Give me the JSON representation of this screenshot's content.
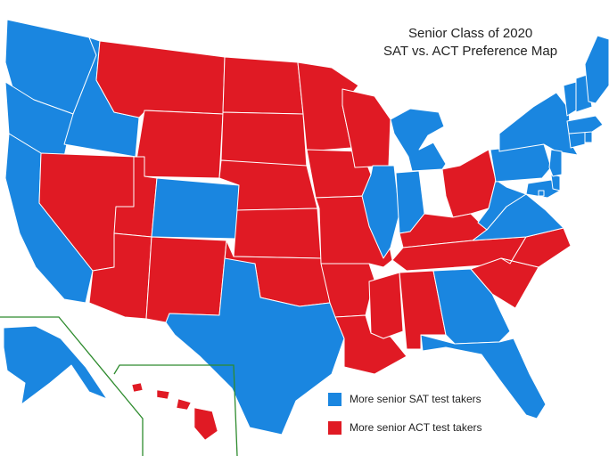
{
  "title": {
    "line1": "Senior Class of 2020",
    "line2": "SAT vs. ACT Preference Map"
  },
  "colors": {
    "sat": "#1a86e0",
    "act": "#e01a24",
    "state_border": "#ffffff",
    "inset_border": "#2e8b2e"
  },
  "legend": {
    "items": [
      {
        "key": "sat",
        "label": "More senior SAT test takers"
      },
      {
        "key": "act",
        "label": "More senior ACT test takers"
      }
    ]
  },
  "states": {
    "sat": [
      "WA",
      "OR",
      "CA",
      "ID",
      "CO",
      "TX",
      "IL",
      "IN",
      "MI",
      "GA",
      "FL",
      "WV",
      "VA",
      "MD",
      "DE",
      "NJ",
      "PA",
      "NY",
      "CT",
      "RI",
      "MA",
      "VT",
      "NH",
      "ME",
      "DC",
      "AK"
    ],
    "act": [
      "NV",
      "UT",
      "AZ",
      "MT",
      "WY",
      "NM",
      "ND",
      "SD",
      "NE",
      "KS",
      "OK",
      "MN",
      "IA",
      "MO",
      "AR",
      "LA",
      "WI",
      "MS",
      "AL",
      "TN",
      "KY",
      "OH",
      "NC",
      "SC",
      "HI"
    ]
  }
}
